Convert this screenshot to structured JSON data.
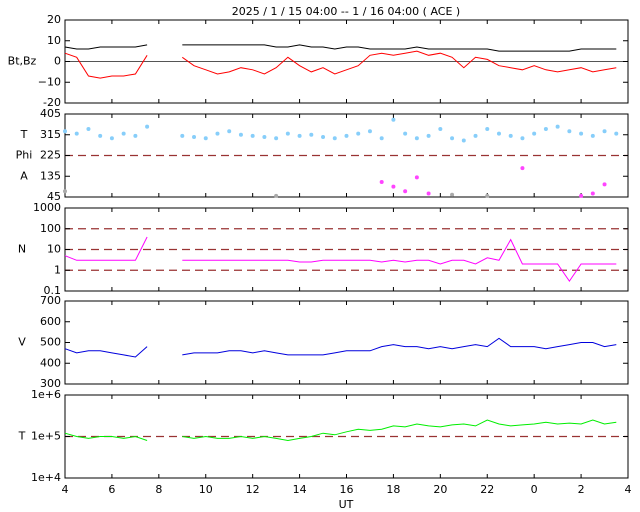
{
  "chart_data": [
    {
      "type": "line",
      "title": "2025 /  1 / 15   04:00 -- 1 / 16   04:00 ( ACE )",
      "axis_labels": [
        "Bt,Bz"
      ],
      "ylim": [
        -20,
        20
      ],
      "yticks": [
        -20,
        {
          "value": -10,
          "label": "−10"
        },
        0,
        10,
        20
      ],
      "ref_lines": [
        0
      ],
      "ref_style": "solid",
      "xlim": [
        4,
        28
      ],
      "x": [
        4,
        4.5,
        5,
        5.5,
        6,
        6.5,
        7,
        7.5,
        8,
        8.5,
        9,
        9.5,
        10,
        10.5,
        11,
        11.5,
        12,
        12.5,
        13,
        13.5,
        14,
        14.5,
        15,
        15.5,
        16,
        16.5,
        17,
        17.5,
        18,
        18.5,
        19,
        19.5,
        20,
        20.5,
        21,
        21.5,
        22,
        22.5,
        23,
        23.5,
        24,
        24.5,
        25,
        25.5,
        26,
        26.5,
        27,
        27.5
      ],
      "series": [
        {
          "name": "Bt",
          "color": "#000000",
          "values": [
            7,
            6,
            6,
            7,
            7,
            7,
            7,
            8,
            null,
            null,
            8,
            8,
            8,
            8,
            8,
            8,
            8,
            8,
            7,
            7,
            8,
            7,
            7,
            6,
            7,
            7,
            6,
            6,
            6,
            6,
            7,
            6,
            6,
            6,
            6,
            6,
            6,
            5,
            5,
            5,
            5,
            5,
            5,
            5,
            6,
            6,
            6,
            6
          ]
        },
        {
          "name": "Bz",
          "color": "#ff0000",
          "values": [
            4,
            2,
            -7,
            -8,
            -7,
            -7,
            -6,
            3,
            null,
            null,
            2,
            -2,
            -4,
            -6,
            -5,
            -3,
            -4,
            -6,
            -3,
            2,
            -2,
            -5,
            -3,
            -6,
            -4,
            -2,
            3,
            4,
            3,
            4,
            5,
            3,
            4,
            2,
            -3,
            2,
            1,
            -2,
            -3,
            -4,
            -2,
            -4,
            -5,
            -4,
            -3,
            -5,
            -4,
            -3
          ]
        }
      ]
    },
    {
      "type": "scatter",
      "axis_labels": [
        "T",
        "Phi",
        "A"
      ],
      "ylim": [
        45,
        405
      ],
      "yticks": [
        45,
        135,
        225,
        315,
        405
      ],
      "ref_lines": [
        225
      ],
      "ref_style": "dashed",
      "xlim": [
        4,
        28
      ],
      "x": [
        4,
        4.5,
        5,
        5.5,
        6,
        6.5,
        7,
        7.5,
        8,
        8.5,
        9,
        9.5,
        10,
        10.5,
        11,
        11.5,
        12,
        12.5,
        13,
        13.5,
        14,
        14.5,
        15,
        15.5,
        16,
        16.5,
        17,
        17.5,
        18,
        18.5,
        19,
        19.5,
        20,
        20.5,
        21,
        21.5,
        22,
        22.5,
        23,
        23.5,
        24,
        24.5,
        25,
        25.5,
        26,
        26.5,
        27,
        27.5
      ],
      "series": [
        {
          "name": "T",
          "color": "#87cefa",
          "values": [
            330,
            320,
            340,
            310,
            300,
            320,
            310,
            350,
            null,
            null,
            310,
            305,
            300,
            320,
            330,
            315,
            310,
            305,
            300,
            320,
            310,
            315,
            305,
            300,
            310,
            320,
            330,
            300,
            380,
            320,
            300,
            310,
            340,
            300,
            290,
            310,
            340,
            320,
            310,
            300,
            320,
            340,
            350,
            330,
            320,
            310,
            330,
            320
          ]
        },
        {
          "name": "A",
          "color": "#ff44ff",
          "values": [
            null,
            null,
            null,
            null,
            null,
            null,
            null,
            null,
            null,
            null,
            null,
            null,
            null,
            null,
            null,
            null,
            null,
            null,
            null,
            null,
            null,
            null,
            null,
            null,
            null,
            null,
            null,
            110,
            90,
            70,
            130,
            60,
            null,
            null,
            null,
            null,
            null,
            null,
            null,
            170,
            null,
            null,
            null,
            null,
            50,
            60,
            100,
            null
          ]
        },
        {
          "name": "Phi",
          "color": "#aaaaaa",
          "values": [
            70,
            null,
            null,
            null,
            null,
            null,
            null,
            null,
            null,
            null,
            null,
            null,
            null,
            null,
            null,
            null,
            null,
            null,
            50,
            null,
            null,
            null,
            null,
            null,
            null,
            null,
            null,
            null,
            null,
            null,
            null,
            null,
            null,
            55,
            null,
            null,
            50,
            null,
            null,
            null,
            null,
            null,
            null,
            null,
            null,
            null,
            null,
            null
          ]
        }
      ]
    },
    {
      "type": "line",
      "axis_labels": [
        "N"
      ],
      "log_y": true,
      "ylim": [
        0.1,
        1000
      ],
      "yticks": [
        0.1,
        1,
        10,
        100,
        1000
      ],
      "ref_lines": [
        1,
        10,
        100
      ],
      "ref_style": "dashed",
      "xlim": [
        4,
        28
      ],
      "x": [
        4,
        4.5,
        5,
        5.5,
        6,
        6.5,
        7,
        7.5,
        8,
        8.5,
        9,
        9.5,
        10,
        10.5,
        11,
        11.5,
        12,
        12.5,
        13,
        13.5,
        14,
        14.5,
        15,
        15.5,
        16,
        16.5,
        17,
        17.5,
        18,
        18.5,
        19,
        19.5,
        20,
        20.5,
        21,
        21.5,
        22,
        22.5,
        23,
        23.5,
        24,
        24.5,
        25,
        25.5,
        26,
        26.5,
        27,
        27.5
      ],
      "series": [
        {
          "name": "N",
          "color": "#ff00ff",
          "values": [
            5,
            3,
            3,
            3,
            3,
            3,
            3,
            40,
            null,
            null,
            3,
            3,
            3,
            3,
            3,
            3,
            3,
            3,
            3,
            3,
            2.5,
            2.5,
            3,
            3,
            3,
            3,
            3,
            2.5,
            3,
            2.5,
            3,
            3,
            2,
            3,
            3,
            2,
            4,
            3,
            30,
            2,
            2,
            2,
            2,
            0.3,
            2,
            2,
            2,
            2
          ]
        }
      ]
    },
    {
      "type": "line",
      "axis_labels": [
        "V"
      ],
      "ylim": [
        300,
        700
      ],
      "yticks": [
        300,
        400,
        500,
        600,
        700
      ],
      "xlim": [
        4,
        28
      ],
      "x": [
        4,
        4.5,
        5,
        5.5,
        6,
        6.5,
        7,
        7.5,
        8,
        8.5,
        9,
        9.5,
        10,
        10.5,
        11,
        11.5,
        12,
        12.5,
        13,
        13.5,
        14,
        14.5,
        15,
        15.5,
        16,
        16.5,
        17,
        17.5,
        18,
        18.5,
        19,
        19.5,
        20,
        20.5,
        21,
        21.5,
        22,
        22.5,
        23,
        23.5,
        24,
        24.5,
        25,
        25.5,
        26,
        26.5,
        27,
        27.5
      ],
      "series": [
        {
          "name": "V",
          "color": "#0000dd",
          "values": [
            470,
            450,
            460,
            460,
            450,
            440,
            430,
            480,
            null,
            null,
            440,
            450,
            450,
            450,
            460,
            460,
            450,
            460,
            450,
            440,
            440,
            440,
            440,
            450,
            460,
            460,
            460,
            480,
            490,
            480,
            480,
            470,
            480,
            470,
            480,
            490,
            480,
            520,
            480,
            480,
            480,
            470,
            480,
            490,
            500,
            500,
            480,
            490
          ]
        }
      ]
    },
    {
      "type": "line",
      "axis_labels": [
        "T"
      ],
      "log_y": true,
      "x_label": "UT",
      "ylim": [
        10000,
        1000000
      ],
      "yticks": [
        {
          "value": 10000,
          "label": "1e+4"
        },
        {
          "value": 100000,
          "label": "1e+5"
        },
        {
          "value": 1000000,
          "label": "1e+6"
        }
      ],
      "ref_lines": [
        100000
      ],
      "ref_style": "dashed",
      "xlim": [
        4,
        28
      ],
      "xticks": [
        4,
        6,
        8,
        10,
        12,
        14,
        16,
        18,
        20,
        22,
        {
          "value": 24,
          "label": "0"
        },
        {
          "value": 26,
          "label": "2"
        },
        {
          "value": 28,
          "label": "4"
        }
      ],
      "x": [
        4,
        4.5,
        5,
        5.5,
        6,
        6.5,
        7,
        7.5,
        8,
        8.5,
        9,
        9.5,
        10,
        10.5,
        11,
        11.5,
        12,
        12.5,
        13,
        13.5,
        14,
        14.5,
        15,
        15.5,
        16,
        16.5,
        17,
        17.5,
        18,
        18.5,
        19,
        19.5,
        20,
        20.5,
        21,
        21.5,
        22,
        22.5,
        23,
        23.5,
        24,
        24.5,
        25,
        25.5,
        26,
        26.5,
        27,
        27.5
      ],
      "series": [
        {
          "name": "T",
          "color": "#00ee00",
          "values": [
            120000,
            100000,
            90000,
            100000,
            100000,
            90000,
            100000,
            80000,
            null,
            null,
            100000,
            90000,
            100000,
            90000,
            90000,
            100000,
            90000,
            100000,
            90000,
            80000,
            90000,
            100000,
            120000,
            110000,
            130000,
            150000,
            140000,
            150000,
            180000,
            170000,
            200000,
            180000,
            170000,
            190000,
            200000,
            180000,
            250000,
            200000,
            180000,
            190000,
            200000,
            220000,
            200000,
            210000,
            200000,
            250000,
            200000,
            220000
          ]
        }
      ]
    }
  ]
}
